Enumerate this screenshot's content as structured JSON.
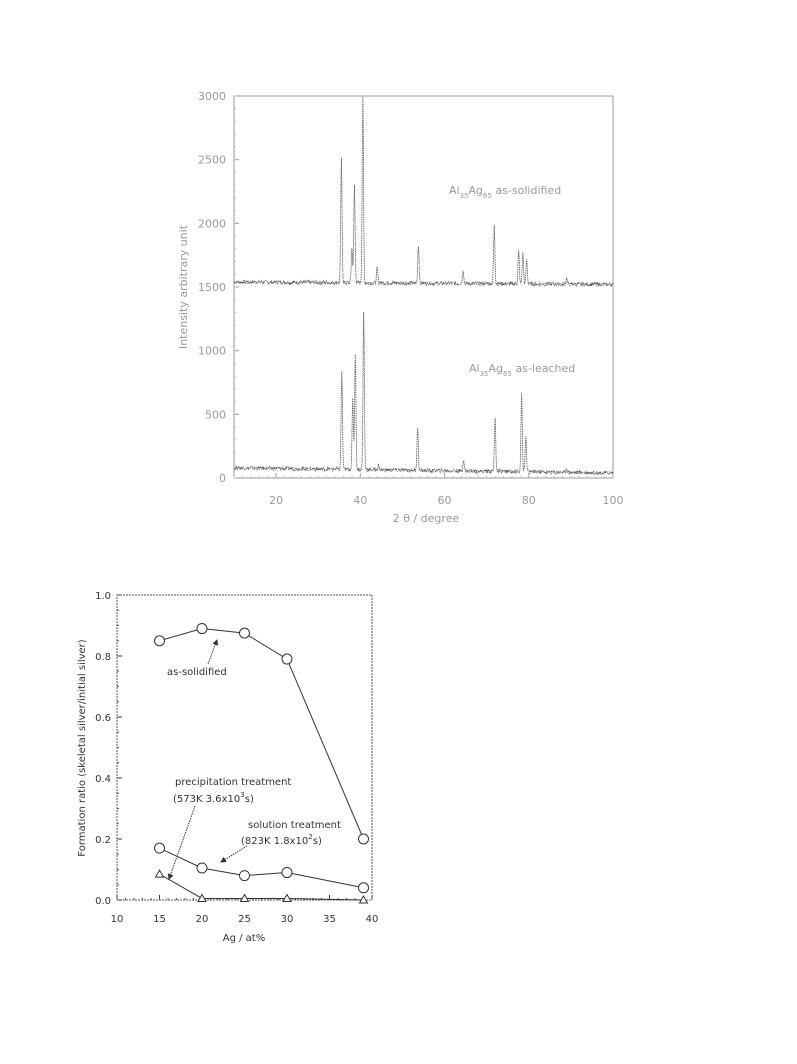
{
  "chart_data": [
    {
      "type": "line",
      "xlabel": "2 θ / degree",
      "ylabel": "Intensity arbitrary unit",
      "xlim": [
        10,
        100
      ],
      "ylim": [
        0,
        3000
      ],
      "x_ticks": [
        20,
        40,
        60,
        80,
        100
      ],
      "y_ticks": [
        0,
        500,
        1000,
        1500,
        2000,
        2500,
        3000
      ],
      "grid": false,
      "series": [
        {
          "label_parts": [
            "Al",
            "35",
            "Ag",
            "65",
            " as-solidified"
          ],
          "baseline": 1540,
          "baseline_end": 1520,
          "peaks": [
            {
              "x": 35.5,
              "y": 2500
            },
            {
              "x": 38.0,
              "y": 1800
            },
            {
              "x": 38.6,
              "y": 2300
            },
            {
              "x": 40.6,
              "y": 3000
            },
            {
              "x": 44.0,
              "y": 1650
            },
            {
              "x": 53.8,
              "y": 1830
            },
            {
              "x": 64.4,
              "y": 1640
            },
            {
              "x": 71.8,
              "y": 1980
            },
            {
              "x": 77.6,
              "y": 1780
            },
            {
              "x": 78.6,
              "y": 1760
            },
            {
              "x": 79.5,
              "y": 1720
            },
            {
              "x": 89.0,
              "y": 1570
            }
          ]
        },
        {
          "label_parts": [
            "Al",
            "35",
            "Ag",
            "65",
            " as-leached"
          ],
          "baseline": 80,
          "baseline_end": 40,
          "peaks": [
            {
              "x": 35.6,
              "y": 840
            },
            {
              "x": 38.2,
              "y": 620
            },
            {
              "x": 38.8,
              "y": 980
            },
            {
              "x": 40.8,
              "y": 1300
            },
            {
              "x": 44.3,
              "y": 100
            },
            {
              "x": 53.6,
              "y": 400
            },
            {
              "x": 64.5,
              "y": 150
            },
            {
              "x": 72.0,
              "y": 480
            },
            {
              "x": 78.3,
              "y": 670
            },
            {
              "x": 79.3,
              "y": 330
            },
            {
              "x": 89.0,
              "y": 80
            }
          ]
        }
      ]
    },
    {
      "type": "line",
      "xlabel": "Ag / at%",
      "ylabel": "Formation ratio (skeletal silver/initial silver)",
      "xlim": [
        10,
        40
      ],
      "ylim": [
        0.0,
        1.0
      ],
      "x_ticks": [
        10,
        15,
        20,
        25,
        30,
        35,
        40
      ],
      "y_ticks": [
        "0.0",
        "0.2",
        "0.4",
        "0.6",
        "0.8",
        "1.0"
      ],
      "grid": false,
      "series": [
        {
          "marker": "circle",
          "x": [
            15,
            20,
            25,
            30,
            39
          ],
          "y": [
            0.85,
            0.89,
            0.875,
            0.79,
            0.2
          ]
        },
        {
          "marker": "circle",
          "x": [
            15,
            20,
            25,
            30,
            39
          ],
          "y": [
            0.17,
            0.105,
            0.08,
            0.09,
            0.04
          ]
        },
        {
          "marker": "triangle",
          "x": [
            15,
            20,
            25,
            30,
            39
          ],
          "y": [
            0.085,
            0.005,
            0.005,
            0.005,
            0.0
          ]
        }
      ],
      "annotations": {
        "as_solidified": "as-solidified",
        "precipitation": "precipitation treatment",
        "precipitation_cond": [
          "(573K 3.6x10",
          "3",
          "s)"
        ],
        "solution": "solution treatment",
        "solution_cond": [
          "(823K 1.8x10",
          "2",
          "s)"
        ]
      }
    }
  ]
}
